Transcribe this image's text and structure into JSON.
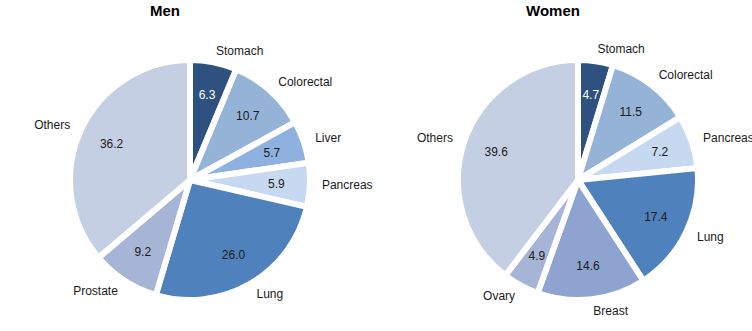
{
  "chart_data": [
    {
      "type": "pie",
      "title": "Men",
      "categories": [
        "Stomach",
        "Colorectal",
        "Liver",
        "Pancreas",
        "Lung",
        "Prostate",
        "Others"
      ],
      "values": [
        6.3,
        10.7,
        5.7,
        5.9,
        26.0,
        9.2,
        36.2
      ],
      "value_labels": [
        "6.3",
        "10.7",
        "5.7",
        "5.9",
        "26.0",
        "9.2",
        "36.2"
      ],
      "colors": [
        "#2e5180",
        "#95b3d7",
        "#8fb1e0",
        "#c6d9f1",
        "#4f81bd",
        "#a6b5d6",
        "#c5cfe3"
      ],
      "data_labels": true
    },
    {
      "type": "pie",
      "title": "Women",
      "categories": [
        "Stomach",
        "Colorectal",
        "Pancreas",
        "Lung",
        "Breast",
        "Ovary",
        "Others"
      ],
      "values": [
        4.7,
        11.5,
        7.2,
        17.4,
        14.6,
        4.9,
        39.6
      ],
      "value_labels": [
        "4.7",
        "11.5",
        "7.2",
        "17.4",
        "14.6",
        "4.9",
        "39.6"
      ],
      "colors": [
        "#2e5180",
        "#95b3d7",
        "#c6d9f1",
        "#4f81bd",
        "#8ea3cf",
        "#a6b5d6",
        "#c5cfe3"
      ],
      "data_labels": true
    }
  ]
}
